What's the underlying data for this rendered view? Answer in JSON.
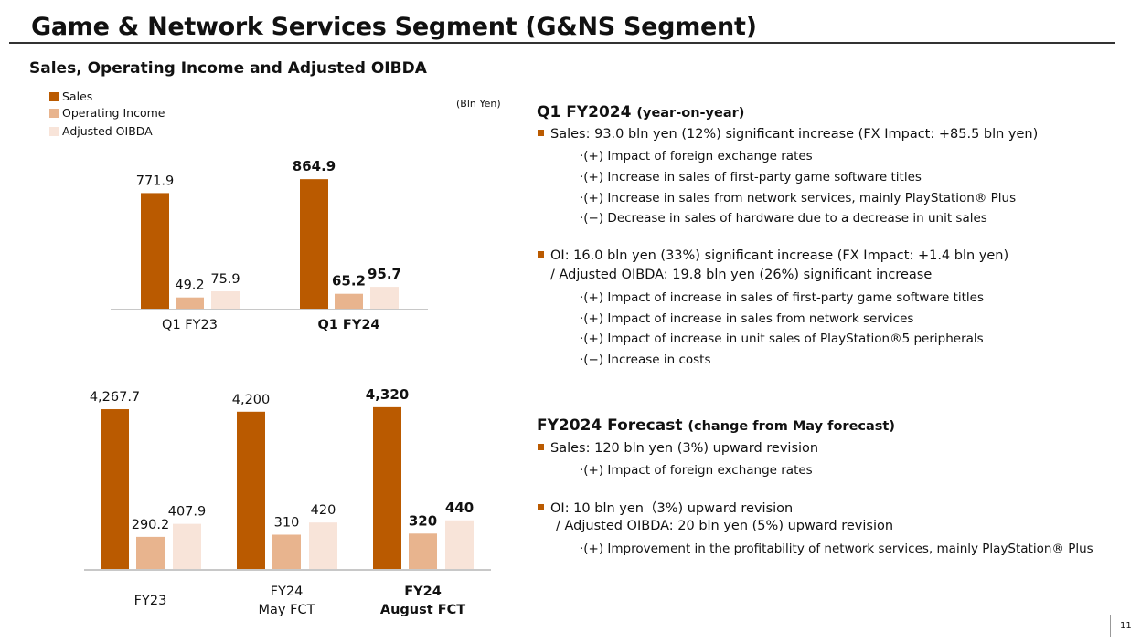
{
  "title": "Game & Network Services Segment (G&NS Segment)",
  "subtitle": "Sales, Operating Income and Adjusted OIBDA",
  "unit": "(Bln Yen)",
  "colors": {
    "sales": "#BA5A00",
    "operating_income": "#E8B48E",
    "adjusted_oibda": "#F8E4D9",
    "accent": "#BA5A00"
  },
  "legend": [
    "Sales",
    "Operating Income",
    "Adjusted OIBDA"
  ],
  "chart_data": [
    {
      "type": "bar",
      "categories": [
        "Q1 FY23",
        "Q1 FY24"
      ],
      "highlight_category": "Q1 FY24",
      "series": [
        {
          "name": "Sales",
          "values": [
            771.9,
            864.9
          ],
          "labels": [
            "771.9",
            "864.9"
          ]
        },
        {
          "name": "Operating Income",
          "values": [
            49.2,
            65.2
          ],
          "labels": [
            "49.2",
            "65.2"
          ]
        },
        {
          "name": "Adjusted OIBDA",
          "values": [
            75.9,
            95.7
          ],
          "labels": [
            "75.9",
            "95.7"
          ]
        }
      ],
      "legend": "top-left",
      "grid": false
    },
    {
      "type": "bar",
      "categories": [
        "FY23",
        "FY24\nMay FCT",
        "FY24\nAugust FCT"
      ],
      "category_lines": [
        [
          "FY23"
        ],
        [
          "FY24",
          "May FCT"
        ],
        [
          "FY24",
          "August FCT"
        ]
      ],
      "highlight_category": "FY24\nAugust FCT",
      "series": [
        {
          "name": "Sales",
          "values": [
            4267.7,
            4200,
            4320
          ],
          "labels": [
            "4,267.7",
            "4,200",
            "4,320"
          ]
        },
        {
          "name": "Operating Income",
          "values": [
            290.2,
            310,
            320
          ],
          "labels": [
            "290.2",
            "310",
            "320"
          ]
        },
        {
          "name": "Adjusted OIBDA",
          "values": [
            407.9,
            420,
            440
          ],
          "labels": [
            "407.9",
            "420",
            "440"
          ]
        }
      ],
      "grid": false
    }
  ],
  "q1": {
    "heading": "Q1 FY2024",
    "heading_note": "(year-on-year)",
    "sales_line": "Sales: 93.0 bln yen (12%) significant increase (FX Impact: +85.5 bln yen)",
    "sales_items": [
      "·(+) Impact of foreign exchange rates",
      "·(+) Increase in sales of first-party game software titles",
      "·(+) Increase in sales from network services, mainly PlayStation® Plus",
      "·(−) Decrease in sales of hardware due to a decrease in unit sales"
    ],
    "oi_line": "OI:  16.0 bln yen (33%) significant increase  (FX Impact: +1.4 bln yen)",
    "oibda_line": "/ Adjusted OIBDA: 19.8 bln yen (26%) significant increase",
    "oi_items": [
      "·(+) Impact of increase in sales of first-party game software titles",
      "·(+) Impact of increase in sales from network services",
      "·(+) Impact of increase in unit sales of PlayStation®5 peripherals",
      "·(−) Increase in costs"
    ]
  },
  "forecast": {
    "heading": "FY2024 Forecast",
    "heading_note": "(change from May forecast)",
    "sales_line": "Sales: 120 bln yen (3%) upward revision",
    "sales_items": [
      "·(+) Impact of foreign exchange rates"
    ],
    "oi_line": "OI: 10 bln yen（3%) upward revision",
    "oibda_line": "/ Adjusted OIBDA: 20 bln yen (5%) upward revision",
    "oi_items": [
      "·(+) Improvement in the profitability of network services, mainly PlayStation® Plus"
    ]
  },
  "page_number": "11"
}
